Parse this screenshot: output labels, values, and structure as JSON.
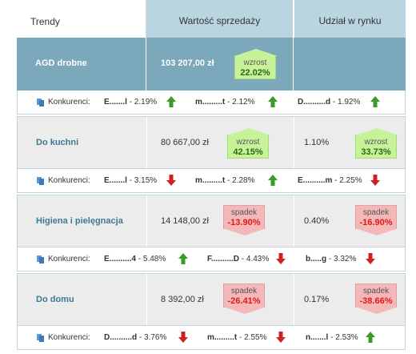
{
  "header": {
    "trendy": "Trendy",
    "sales_value": "Wartość sprzedaży",
    "market_share": "Udział w rynku"
  },
  "competitors_label": "Konkurenci:",
  "colors": {
    "header": "#b9d6e0",
    "highlight": "#7ba8bb",
    "up": "#c8f29a",
    "down": "#f4b8b8",
    "arrow_up": "#3a9a2a",
    "arrow_down": "#cc2222"
  },
  "rows": [
    {
      "name": "AGD drobne",
      "amount": "103 207,00 zł",
      "amount_badge": {
        "label": "wzrost",
        "value": "22.02%",
        "trend": "up"
      },
      "share": "",
      "competitors": [
        {
          "name": "E.......l",
          "value": "- 2.19%",
          "trend": "up"
        },
        {
          "name": "m.........t",
          "value": "- 2.12%",
          "trend": "up"
        },
        {
          "name": "D..........d",
          "value": "- 1.92%",
          "trend": "up"
        }
      ]
    },
    {
      "name": "Do kuchni",
      "amount": "80 667,00 zł",
      "amount_badge": {
        "label": "wzrost",
        "value": "42.15%",
        "trend": "up"
      },
      "share": "1.10%",
      "share_badge": {
        "label": "wzrost",
        "value": "33.73%",
        "trend": "up"
      },
      "competitors": [
        {
          "name": "E.......l",
          "value": "- 3.15%",
          "trend": "down"
        },
        {
          "name": "m.........t",
          "value": "- 2.28%",
          "trend": "up"
        },
        {
          "name": "E..........m",
          "value": "- 2.25%",
          "trend": "down"
        }
      ]
    },
    {
      "name": "Higiena i pielęgnacja",
      "amount": "14 148,00 zł",
      "amount_badge": {
        "label": "spadek",
        "value": "-13.90%",
        "trend": "down"
      },
      "share": "0.40%",
      "share_badge": {
        "label": "spadek",
        "value": "-16.90%",
        "trend": "down"
      },
      "competitors": [
        {
          "name": "E..........4",
          "value": "- 5.48%",
          "trend": "up"
        },
        {
          "name": "F..........D",
          "value": "- 4.43%",
          "trend": "down"
        },
        {
          "name": "b.....g",
          "value": "- 3.32%",
          "trend": "down"
        }
      ]
    },
    {
      "name": "Do domu",
      "amount": "8 392,00 zł",
      "amount_badge": {
        "label": "spadek",
        "value": "-26.41%",
        "trend": "down"
      },
      "share": "0.17%",
      "share_badge": {
        "label": "spadek",
        "value": "-38.66%",
        "trend": "down"
      },
      "competitors": [
        {
          "name": "D..........d",
          "value": "- 3.76%",
          "trend": "down"
        },
        {
          "name": "m.........t",
          "value": "- 2.55%",
          "trend": "down"
        },
        {
          "name": "n.......l",
          "value": "- 2.53%",
          "trend": "up"
        }
      ]
    }
  ]
}
